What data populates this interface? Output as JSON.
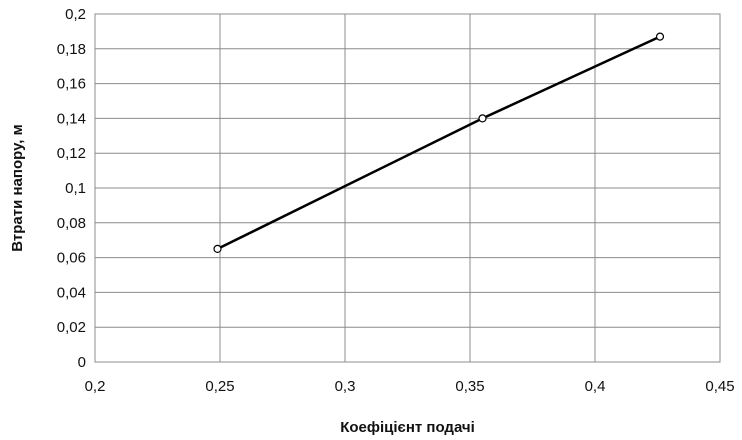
{
  "chart_data": {
    "type": "line",
    "title": "",
    "xlabel": "Коефіцієнт подачі",
    "ylabel": "Втрати напору, м",
    "xlim": [
      0.2,
      0.45
    ],
    "ylim": [
      0,
      0.2
    ],
    "x_ticks": [
      "0,2",
      "0,25",
      "0,3",
      "0,35",
      "0,4",
      "0,45"
    ],
    "y_ticks": [
      "0",
      "0,02",
      "0,04",
      "0,06",
      "0,08",
      "0,1",
      "0,12",
      "0,14",
      "0,16",
      "0,18",
      "0,2"
    ],
    "grid": true,
    "legend": "none",
    "series": [
      {
        "color": "#000000",
        "marker": "circle-open",
        "x": [
          0.249,
          0.355,
          0.426
        ],
        "y": [
          0.065,
          0.14,
          0.187
        ]
      }
    ]
  }
}
